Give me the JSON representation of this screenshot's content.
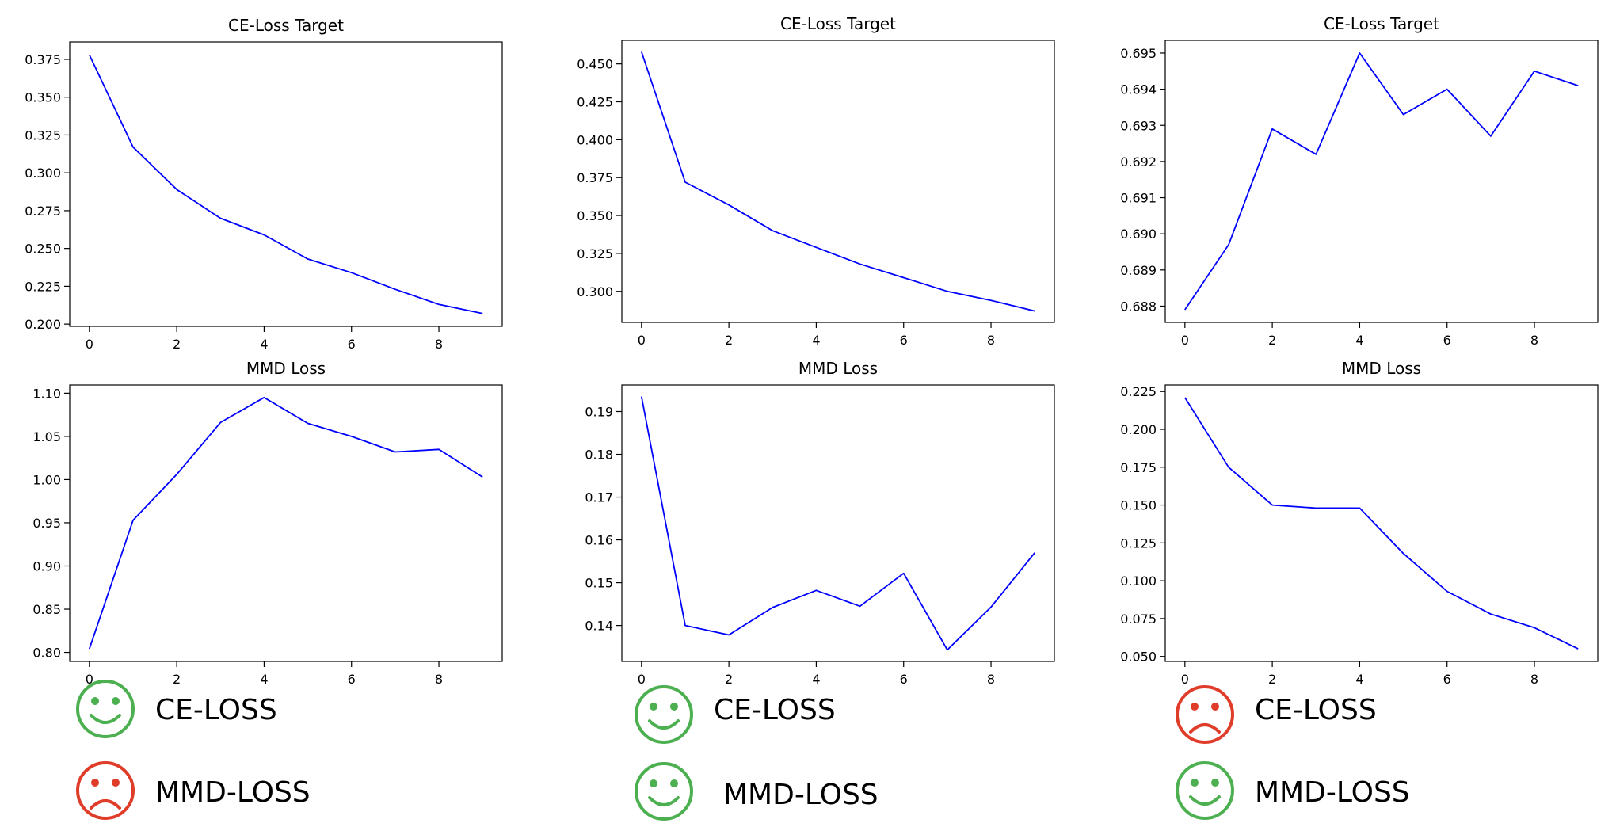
{
  "chart_data": [
    {
      "type": "line",
      "title": "CE-Loss Target",
      "x": [
        0,
        1,
        2,
        3,
        4,
        5,
        6,
        7,
        8,
        9
      ],
      "values": [
        0.378,
        0.317,
        0.289,
        0.27,
        0.259,
        0.243,
        0.234,
        0.223,
        0.213,
        0.207
      ],
      "xlim": [
        -0.45,
        9.45
      ],
      "ylim": [
        0.1985,
        0.3865
      ],
      "xticks": [
        "0",
        "2",
        "4",
        "6",
        "8"
      ],
      "yticks": [
        "0.200",
        "0.225",
        "0.250",
        "0.275",
        "0.300",
        "0.325",
        "0.350",
        "0.375"
      ],
      "grid": false,
      "color": "#0000ff"
    },
    {
      "type": "line",
      "title": "CE-Loss Target",
      "x": [
        0,
        1,
        2,
        3,
        4,
        5,
        6,
        7,
        8,
        9
      ],
      "values": [
        0.458,
        0.372,
        0.357,
        0.34,
        0.329,
        0.318,
        0.309,
        0.3,
        0.294,
        0.287
      ],
      "xlim": [
        -0.45,
        9.45
      ],
      "ylim": [
        0.2795,
        0.4655
      ],
      "xticks": [
        "0",
        "2",
        "4",
        "6",
        "8"
      ],
      "yticks": [
        "0.300",
        "0.325",
        "0.350",
        "0.375",
        "0.400",
        "0.425",
        "0.450"
      ],
      "grid": false,
      "color": "#0000ff"
    },
    {
      "type": "line",
      "title": "CE-Loss Target",
      "x": [
        0,
        1,
        2,
        3,
        4,
        5,
        6,
        7,
        8,
        9
      ],
      "values": [
        0.6879,
        0.6897,
        0.6929,
        0.6922,
        0.695,
        0.6933,
        0.694,
        0.6927,
        0.6945,
        0.6941
      ],
      "xlim": [
        -0.45,
        9.45
      ],
      "ylim": [
        0.68755,
        0.69535
      ],
      "xticks": [
        "0",
        "2",
        "4",
        "6",
        "8"
      ],
      "yticks": [
        "0.688",
        "0.689",
        "0.690",
        "0.691",
        "0.692",
        "0.693",
        "0.694",
        "0.695"
      ],
      "grid": false,
      "color": "#0000ff"
    },
    {
      "type": "line",
      "title": "MMD Loss",
      "x": [
        0,
        1,
        2,
        3,
        4,
        5,
        6,
        7,
        8,
        9
      ],
      "values": [
        0.804,
        0.953,
        1.006,
        1.066,
        1.095,
        1.065,
        1.05,
        1.032,
        1.035,
        1.003
      ],
      "xlim": [
        -0.45,
        9.45
      ],
      "ylim": [
        0.7895,
        1.1095
      ],
      "xticks": [
        "0",
        "2",
        "4",
        "6",
        "8"
      ],
      "yticks": [
        "0.80",
        "0.85",
        "0.90",
        "0.95",
        "1.00",
        "1.05",
        "1.10"
      ],
      "grid": false,
      "color": "#0000ff"
    },
    {
      "type": "line",
      "title": "MMD Loss",
      "x": [
        0,
        1,
        2,
        3,
        4,
        5,
        6,
        7,
        8,
        9
      ],
      "values": [
        0.1935,
        0.14,
        0.1378,
        0.1442,
        0.1482,
        0.1445,
        0.1522,
        0.1343,
        0.1443,
        0.157
      ],
      "xlim": [
        -0.45,
        9.45
      ],
      "ylim": [
        0.1316,
        0.1962
      ],
      "xticks": [
        "0",
        "2",
        "4",
        "6",
        "8"
      ],
      "yticks": [
        "0.14",
        "0.15",
        "0.16",
        "0.17",
        "0.18",
        "0.19"
      ],
      "grid": false,
      "color": "#0000ff"
    },
    {
      "type": "line",
      "title": "MMD Loss",
      "x": [
        0,
        1,
        2,
        3,
        4,
        5,
        6,
        7,
        8,
        9
      ],
      "values": [
        0.221,
        0.175,
        0.15,
        0.148,
        0.148,
        0.118,
        0.093,
        0.078,
        0.069,
        0.055
      ],
      "xlim": [
        -0.45,
        9.45
      ],
      "ylim": [
        0.0467,
        0.2293
      ],
      "xticks": [
        "0",
        "2",
        "4",
        "6",
        "8"
      ],
      "yticks": [
        "0.050",
        "0.075",
        "0.100",
        "0.125",
        "0.150",
        "0.175",
        "0.200",
        "0.225"
      ],
      "grid": false,
      "color": "#0000ff"
    }
  ],
  "legend": [
    {
      "label": "CE-LOSS",
      "mood": "happy",
      "color": "#4caf50"
    },
    {
      "label": "MMD-LOSS",
      "mood": "sad",
      "color": "#e03c2a"
    },
    {
      "label": "CE-LOSS",
      "mood": "happy",
      "color": "#4caf50"
    },
    {
      "label": "MMD-LOSS",
      "mood": "happy",
      "color": "#4caf50"
    },
    {
      "label": "CE-LOSS",
      "mood": "sad",
      "color": "#e03c2a"
    },
    {
      "label": "MMD-LOSS",
      "mood": "happy",
      "color": "#4caf50"
    }
  ],
  "icons": {
    "happy": "smiley-happy-icon",
    "sad": "smiley-sad-icon"
  }
}
